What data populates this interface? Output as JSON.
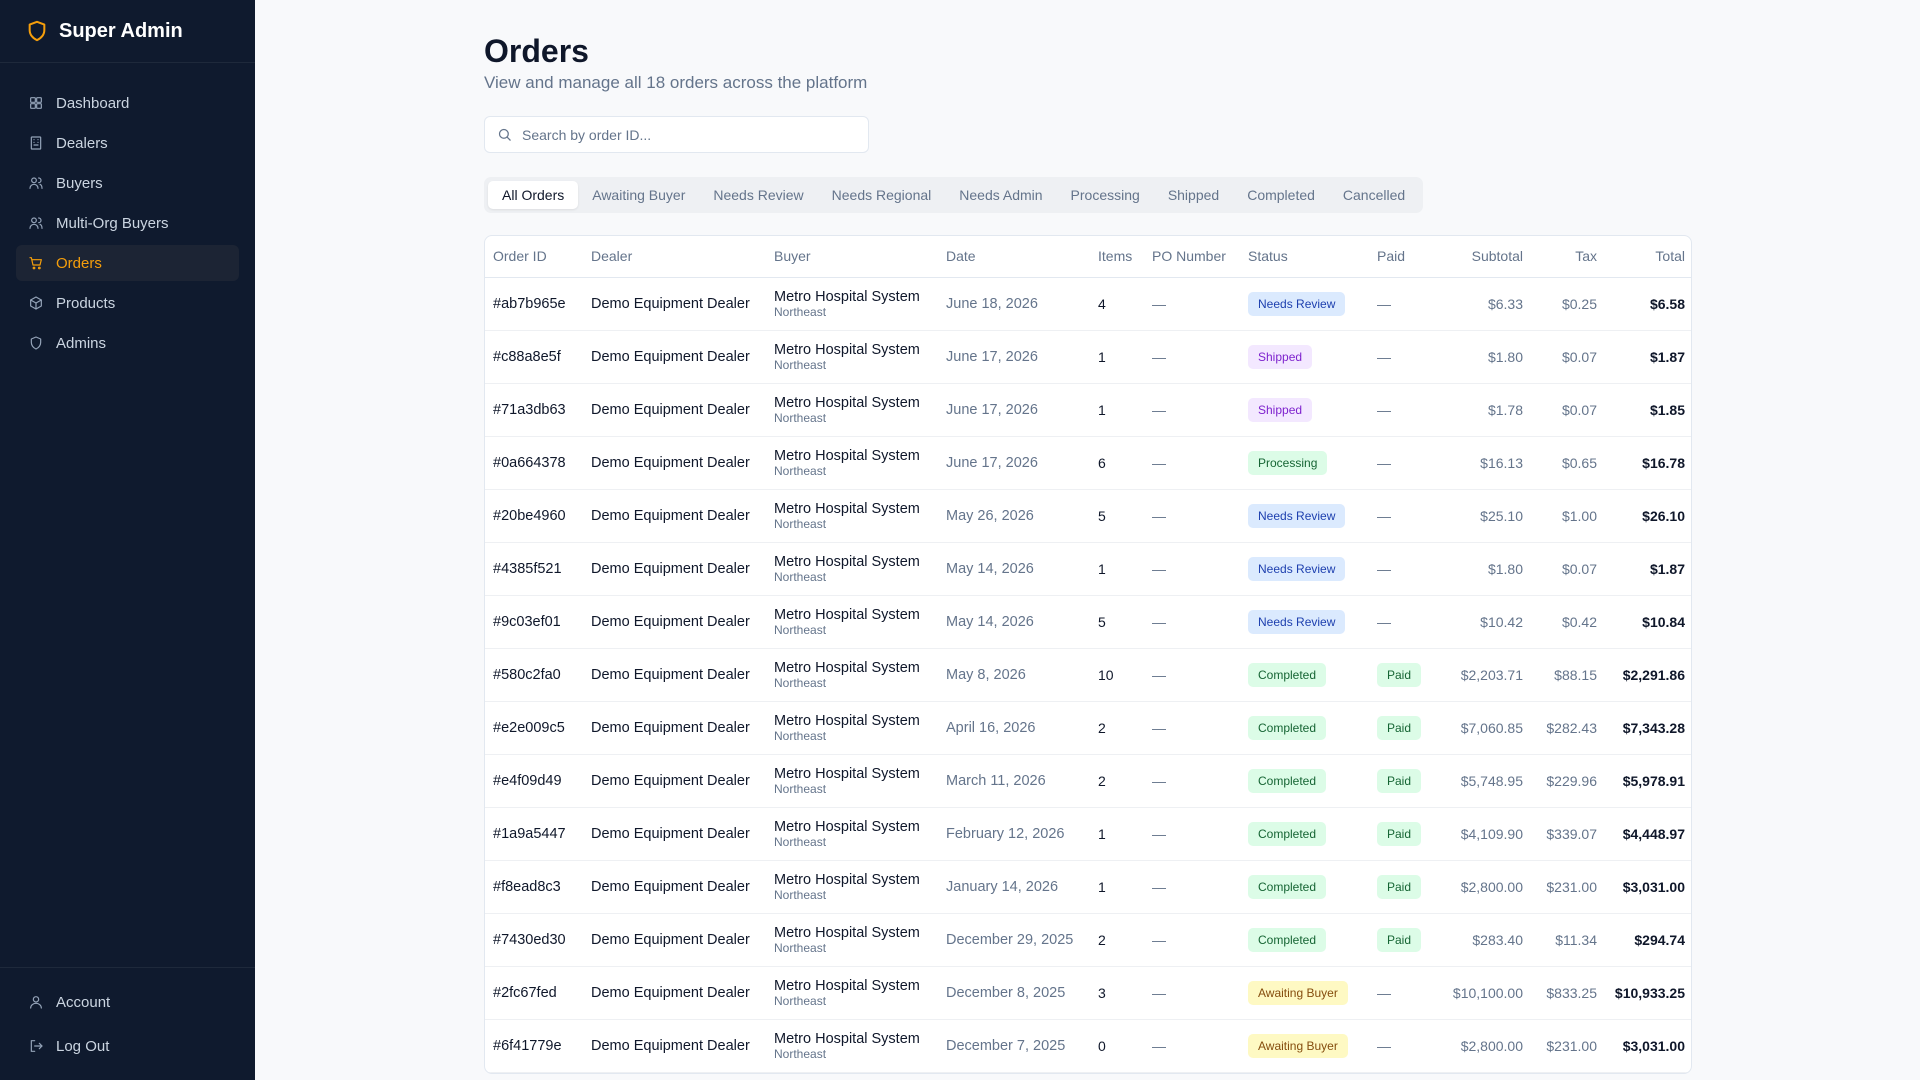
{
  "brand": {
    "title": "Super Admin"
  },
  "sidebar": {
    "items": [
      {
        "label": "Dashboard",
        "icon": "grid-icon"
      },
      {
        "label": "Dealers",
        "icon": "building-icon"
      },
      {
        "label": "Buyers",
        "icon": "users-icon"
      },
      {
        "label": "Multi-Org Buyers",
        "icon": "users-icon"
      },
      {
        "label": "Orders",
        "icon": "cart-icon",
        "active": true
      },
      {
        "label": "Products",
        "icon": "box-icon"
      },
      {
        "label": "Admins",
        "icon": "shield-icon"
      }
    ],
    "bottom": [
      {
        "label": "Account",
        "icon": "user-icon"
      },
      {
        "label": "Log Out",
        "icon": "logout-icon"
      }
    ],
    "accent_color": "#f59e0b"
  },
  "page": {
    "title": "Orders",
    "subtitle": "View and manage all 18 orders across the platform"
  },
  "search": {
    "placeholder": "Search by order ID..."
  },
  "tabs": [
    "All Orders",
    "Awaiting Buyer",
    "Needs Review",
    "Needs Regional",
    "Needs Admin",
    "Processing",
    "Shipped",
    "Completed",
    "Cancelled"
  ],
  "table": {
    "columns": [
      "Order ID",
      "Dealer",
      "Buyer",
      "Date",
      "Items",
      "PO Number",
      "Status",
      "Paid",
      "Subtotal",
      "Tax",
      "Total"
    ],
    "rows": [
      {
        "id": "#ab7b965e",
        "dealer": "Demo Equipment Dealer",
        "buyer": "Metro Hospital System",
        "region": "Northeast",
        "date": "June 18, 2026",
        "items": "4",
        "po": "—",
        "status": "Needs Review",
        "paid": "—",
        "subtotal": "$6.33",
        "tax": "$0.25",
        "total": "$6.58"
      },
      {
        "id": "#c88a8e5f",
        "dealer": "Demo Equipment Dealer",
        "buyer": "Metro Hospital System",
        "region": "Northeast",
        "date": "June 17, 2026",
        "items": "1",
        "po": "—",
        "status": "Shipped",
        "paid": "—",
        "subtotal": "$1.80",
        "tax": "$0.07",
        "total": "$1.87"
      },
      {
        "id": "#71a3db63",
        "dealer": "Demo Equipment Dealer",
        "buyer": "Metro Hospital System",
        "region": "Northeast",
        "date": "June 17, 2026",
        "items": "1",
        "po": "—",
        "status": "Shipped",
        "paid": "—",
        "subtotal": "$1.78",
        "tax": "$0.07",
        "total": "$1.85"
      },
      {
        "id": "#0a664378",
        "dealer": "Demo Equipment Dealer",
        "buyer": "Metro Hospital System",
        "region": "Northeast",
        "date": "June 17, 2026",
        "items": "6",
        "po": "—",
        "status": "Processing",
        "paid": "—",
        "subtotal": "$16.13",
        "tax": "$0.65",
        "total": "$16.78"
      },
      {
        "id": "#20be4960",
        "dealer": "Demo Equipment Dealer",
        "buyer": "Metro Hospital System",
        "region": "Northeast",
        "date": "May 26, 2026",
        "items": "5",
        "po": "—",
        "status": "Needs Review",
        "paid": "—",
        "subtotal": "$25.10",
        "tax": "$1.00",
        "total": "$26.10"
      },
      {
        "id": "#4385f521",
        "dealer": "Demo Equipment Dealer",
        "buyer": "Metro Hospital System",
        "region": "Northeast",
        "date": "May 14, 2026",
        "items": "1",
        "po": "—",
        "status": "Needs Review",
        "paid": "—",
        "subtotal": "$1.80",
        "tax": "$0.07",
        "total": "$1.87"
      },
      {
        "id": "#9c03ef01",
        "dealer": "Demo Equipment Dealer",
        "buyer": "Metro Hospital System",
        "region": "Northeast",
        "date": "May 14, 2026",
        "items": "5",
        "po": "—",
        "status": "Needs Review",
        "paid": "—",
        "subtotal": "$10.42",
        "tax": "$0.42",
        "total": "$10.84"
      },
      {
        "id": "#580c2fa0",
        "dealer": "Demo Equipment Dealer",
        "buyer": "Metro Hospital System",
        "region": "Northeast",
        "date": "May 8, 2026",
        "items": "10",
        "po": "—",
        "status": "Completed",
        "paid": "Paid",
        "subtotal": "$2,203.71",
        "tax": "$88.15",
        "total": "$2,291.86"
      },
      {
        "id": "#e2e009c5",
        "dealer": "Demo Equipment Dealer",
        "buyer": "Metro Hospital System",
        "region": "Northeast",
        "date": "April 16, 2026",
        "items": "2",
        "po": "—",
        "status": "Completed",
        "paid": "Paid",
        "subtotal": "$7,060.85",
        "tax": "$282.43",
        "total": "$7,343.28"
      },
      {
        "id": "#e4f09d49",
        "dealer": "Demo Equipment Dealer",
        "buyer": "Metro Hospital System",
        "region": "Northeast",
        "date": "March 11, 2026",
        "items": "2",
        "po": "—",
        "status": "Completed",
        "paid": "Paid",
        "subtotal": "$5,748.95",
        "tax": "$229.96",
        "total": "$5,978.91"
      },
      {
        "id": "#1a9a5447",
        "dealer": "Demo Equipment Dealer",
        "buyer": "Metro Hospital System",
        "region": "Northeast",
        "date": "February 12, 2026",
        "items": "1",
        "po": "—",
        "status": "Completed",
        "paid": "Paid",
        "subtotal": "$4,109.90",
        "tax": "$339.07",
        "total": "$4,448.97"
      },
      {
        "id": "#f8ead8c3",
        "dealer": "Demo Equipment Dealer",
        "buyer": "Metro Hospital System",
        "region": "Northeast",
        "date": "January 14, 2026",
        "items": "1",
        "po": "—",
        "status": "Completed",
        "paid": "Paid",
        "subtotal": "$2,800.00",
        "tax": "$231.00",
        "total": "$3,031.00"
      },
      {
        "id": "#7430ed30",
        "dealer": "Demo Equipment Dealer",
        "buyer": "Metro Hospital System",
        "region": "Northeast",
        "date": "December 29, 2025",
        "items": "2",
        "po": "—",
        "status": "Completed",
        "paid": "Paid",
        "subtotal": "$283.40",
        "tax": "$11.34",
        "total": "$294.74"
      },
      {
        "id": "#2fc67fed",
        "dealer": "Demo Equipment Dealer",
        "buyer": "Metro Hospital System",
        "region": "Northeast",
        "date": "December 8, 2025",
        "items": "3",
        "po": "—",
        "status": "Awaiting Buyer",
        "paid": "—",
        "subtotal": "$10,100.00",
        "tax": "$833.25",
        "total": "$10,933.25"
      },
      {
        "id": "#6f41779e",
        "dealer": "Demo Equipment Dealer",
        "buyer": "Metro Hospital System",
        "region": "Northeast",
        "date": "December 7, 2025",
        "items": "0",
        "po": "—",
        "status": "Awaiting Buyer",
        "paid": "—",
        "subtotal": "$2,800.00",
        "tax": "$231.00",
        "total": "$3,031.00"
      }
    ]
  }
}
